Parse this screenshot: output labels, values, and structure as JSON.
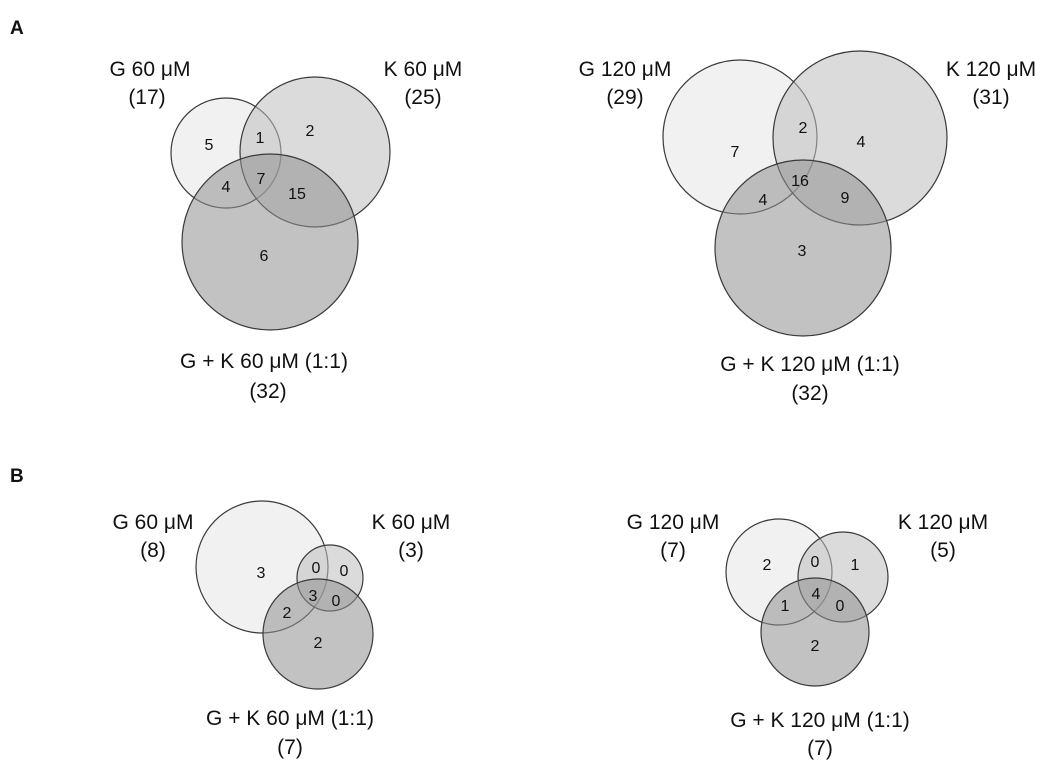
{
  "panels": {
    "A": {
      "letter": "A",
      "venns": [
        {
          "sets": [
            {
              "name": "G 60 μM",
              "total": "(17)"
            },
            {
              "name": "K 60 μM",
              "total": "(25)"
            },
            {
              "name": "G + K 60 μM (1:1)",
              "total": "(32)"
            }
          ],
          "regions": {
            "g_only": "5",
            "k_only": "2",
            "gk_only": "6",
            "g_k": "1",
            "g_gk": "4",
            "k_gk": "15",
            "all": "7"
          }
        },
        {
          "sets": [
            {
              "name": "G 120 μM",
              "total": "(29)"
            },
            {
              "name": "K 120 μM",
              "total": "(31)"
            },
            {
              "name": "G + K 120 μM (1:1)",
              "total": "(32)"
            }
          ],
          "regions": {
            "g_only": "7",
            "k_only": "4",
            "gk_only": "3",
            "g_k": "2",
            "g_gk": "4",
            "k_gk": "9",
            "all": "16"
          }
        }
      ]
    },
    "B": {
      "letter": "B",
      "venns": [
        {
          "sets": [
            {
              "name": "G 60 μM",
              "total": "(8)"
            },
            {
              "name": "K 60 μM",
              "total": "(3)"
            },
            {
              "name": "G + K 60 μM (1:1)",
              "total": "(7)"
            }
          ],
          "regions": {
            "g_only": "3",
            "k_only": "0",
            "gk_only": "2",
            "g_k": "0",
            "g_gk": "2",
            "k_gk": "0",
            "all": "3"
          }
        },
        {
          "sets": [
            {
              "name": "G 120 μM",
              "total": "(7)"
            },
            {
              "name": "K 120 μM",
              "total": "(5)"
            },
            {
              "name": "G + K 120 μM (1:1)",
              "total": "(7)"
            }
          ],
          "regions": {
            "g_only": "2",
            "k_only": "1",
            "gk_only": "2",
            "g_k": "0",
            "g_gk": "1",
            "k_gk": "0",
            "all": "4"
          }
        }
      ]
    }
  }
}
